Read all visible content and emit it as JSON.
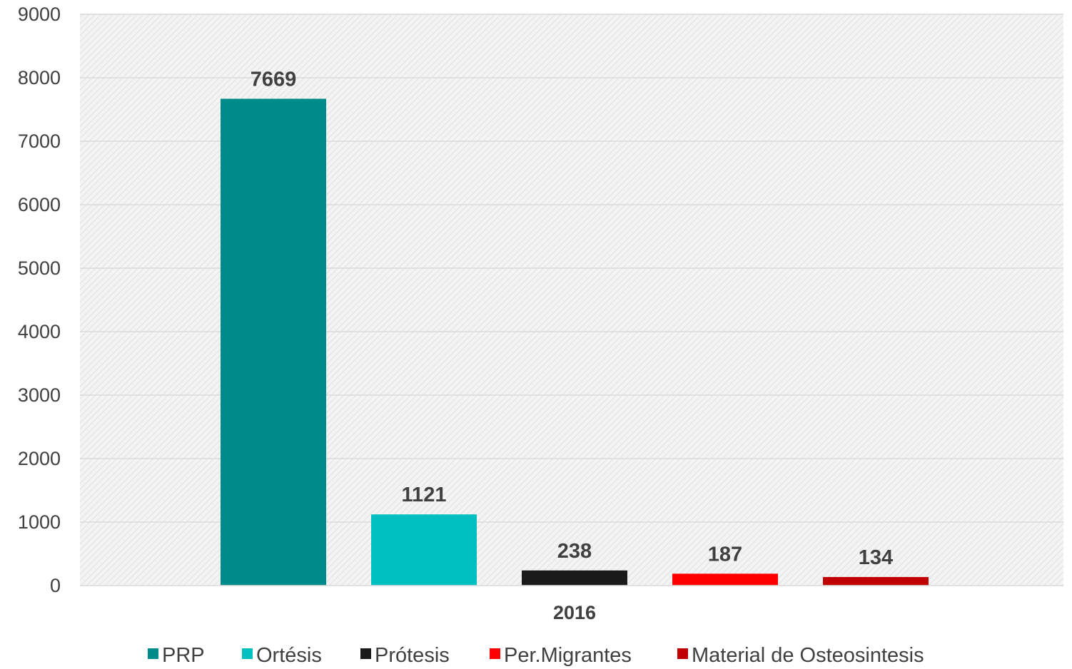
{
  "chart_data": {
    "type": "bar",
    "categories": [
      "2016"
    ],
    "series": [
      {
        "name": "PRP",
        "values": [
          7669
        ],
        "color": "#008B8B"
      },
      {
        "name": "Ortésis",
        "values": [
          1121
        ],
        "color": "#00BFC0"
      },
      {
        "name": "Prótesis",
        "values": [
          238
        ],
        "color": "#1A1A1A"
      },
      {
        "name": "Per.Migrantes",
        "values": [
          187
        ],
        "color": "#FF0000"
      },
      {
        "name": "Material de Osteosintesis",
        "values": [
          134
        ],
        "color": "#C00000"
      }
    ],
    "ylim": [
      0,
      9000
    ],
    "yticks": [
      0,
      1000,
      2000,
      3000,
      4000,
      5000,
      6000,
      7000,
      8000,
      9000
    ],
    "grid": true,
    "legend": "bottom",
    "data_labels": true
  }
}
